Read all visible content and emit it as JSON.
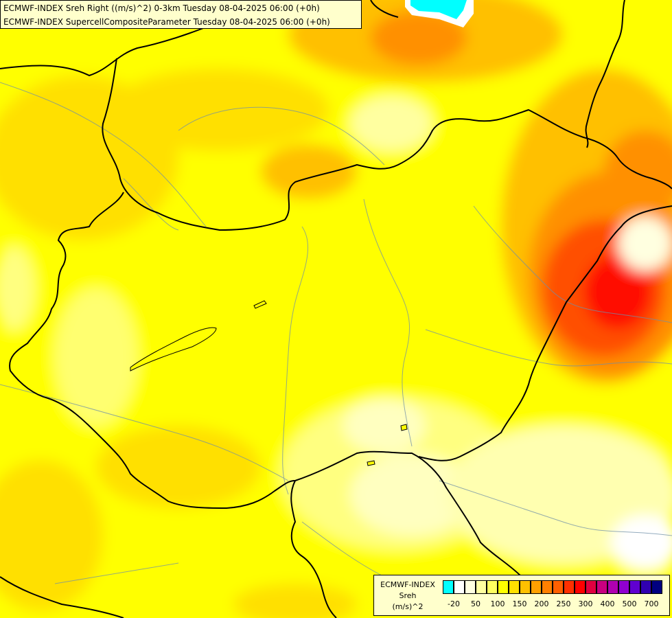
{
  "titles": {
    "line1": "ECMWF-INDEX Sreh Right ((m/s)^2) 0-3km Tuesday 08-04-2025 06:00 (+0h)",
    "line2": "ECMWF-INDEX SupercellCompositeParameter Tuesday 08-04-2025 06:00 (+0h)"
  },
  "legend": {
    "model": "ECMWF-INDEX",
    "variable": "Sreh",
    "unit": "(m/s)^2",
    "colors": [
      "#00ffff",
      "#ffffff",
      "#ffffe0",
      "#ffffa0",
      "#ffff60",
      "#ffff00",
      "#ffe000",
      "#ffc000",
      "#ffa000",
      "#ff8000",
      "#ff6000",
      "#ff3000",
      "#ff0000",
      "#e00040",
      "#c80080",
      "#b000b0",
      "#9000d0",
      "#6000d0",
      "#3000b0",
      "#000080"
    ],
    "ticks": [
      "-20",
      "50",
      "100",
      "150",
      "200",
      "250",
      "300",
      "400",
      "500",
      "700"
    ]
  }
}
